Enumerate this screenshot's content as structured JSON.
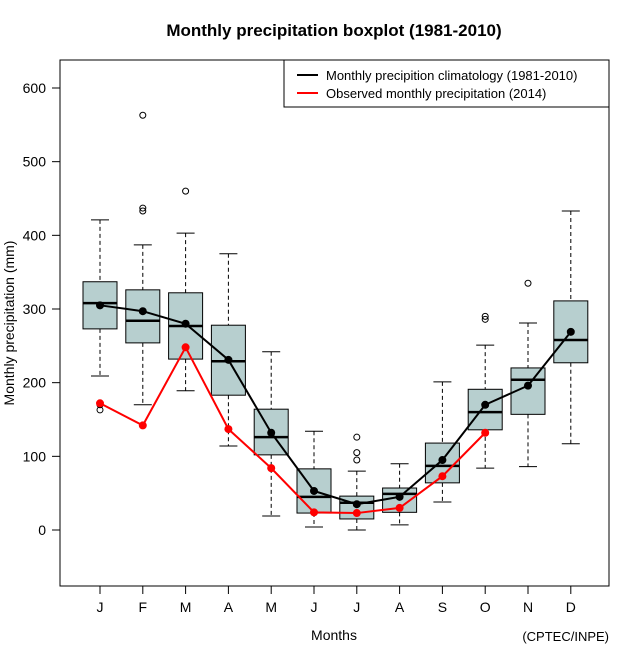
{
  "chart_data": {
    "type": "boxplot",
    "title": "Monthly precipitation boxplot (1981-2010)",
    "xlabel": "Months",
    "ylabel": "Monthly precipitation (mm)",
    "credit": "(CPTEC/INPE)",
    "ylim": [
      -75,
      640
    ],
    "yticks": [
      0,
      100,
      200,
      300,
      400,
      500,
      600
    ],
    "categories": [
      "J",
      "F",
      "M",
      "A",
      "M",
      "J",
      "J",
      "A",
      "S",
      "O",
      "N",
      "D"
    ],
    "legend": {
      "position": "top-right",
      "entries": [
        {
          "label": "Monthly precipition climatology (1981-2010)",
          "color": "#000000"
        },
        {
          "label": "Observed monthly precipitation (2014)",
          "color": "#ff0000"
        }
      ]
    },
    "box_color": "#b7cfcf",
    "boxes": [
      {
        "low": 209,
        "q1": 273,
        "median": 308,
        "q3": 337,
        "high": 421,
        "outliers": [
          163,
          170
        ]
      },
      {
        "low": 170,
        "q1": 254,
        "median": 284,
        "q3": 326,
        "high": 387,
        "outliers": [
          563,
          437,
          433
        ]
      },
      {
        "low": 189,
        "q1": 232,
        "median": 277,
        "q3": 322,
        "high": 403,
        "outliers": [
          460
        ]
      },
      {
        "low": 114,
        "q1": 183,
        "median": 229,
        "q3": 278,
        "high": 375,
        "outliers": []
      },
      {
        "low": 19,
        "q1": 102,
        "median": 126,
        "q3": 164,
        "high": 242,
        "outliers": []
      },
      {
        "low": 4,
        "q1": 23,
        "median": 45,
        "q3": 83,
        "high": 134,
        "outliers": []
      },
      {
        "low": 0,
        "q1": 15,
        "median": 37,
        "q3": 46,
        "high": 80,
        "outliers": [
          126,
          105,
          95
        ]
      },
      {
        "low": 7,
        "q1": 24,
        "median": 49,
        "q3": 57,
        "high": 90,
        "outliers": []
      },
      {
        "low": 38,
        "q1": 64,
        "median": 87,
        "q3": 118,
        "high": 201,
        "outliers": []
      },
      {
        "low": 84,
        "q1": 136,
        "median": 160,
        "q3": 191,
        "high": 251,
        "outliers": [
          290,
          286
        ]
      },
      {
        "low": 86,
        "q1": 157,
        "median": 204,
        "q3": 220,
        "high": 281,
        "outliers": [
          335
        ]
      },
      {
        "low": 117,
        "q1": 227,
        "median": 258,
        "q3": 311,
        "high": 433,
        "outliers": []
      }
    ],
    "series": [
      {
        "name": "Monthly precipition climatology (1981-2010)",
        "color": "#000000",
        "values": [
          305,
          297,
          280,
          231,
          132,
          53,
          35,
          45,
          95,
          170,
          196,
          269
        ]
      },
      {
        "name": "Observed monthly precipitation (2014)",
        "color": "#ff0000",
        "values": [
          172,
          142,
          248,
          137,
          84,
          24,
          23,
          30,
          73,
          132,
          null,
          null
        ]
      }
    ]
  }
}
